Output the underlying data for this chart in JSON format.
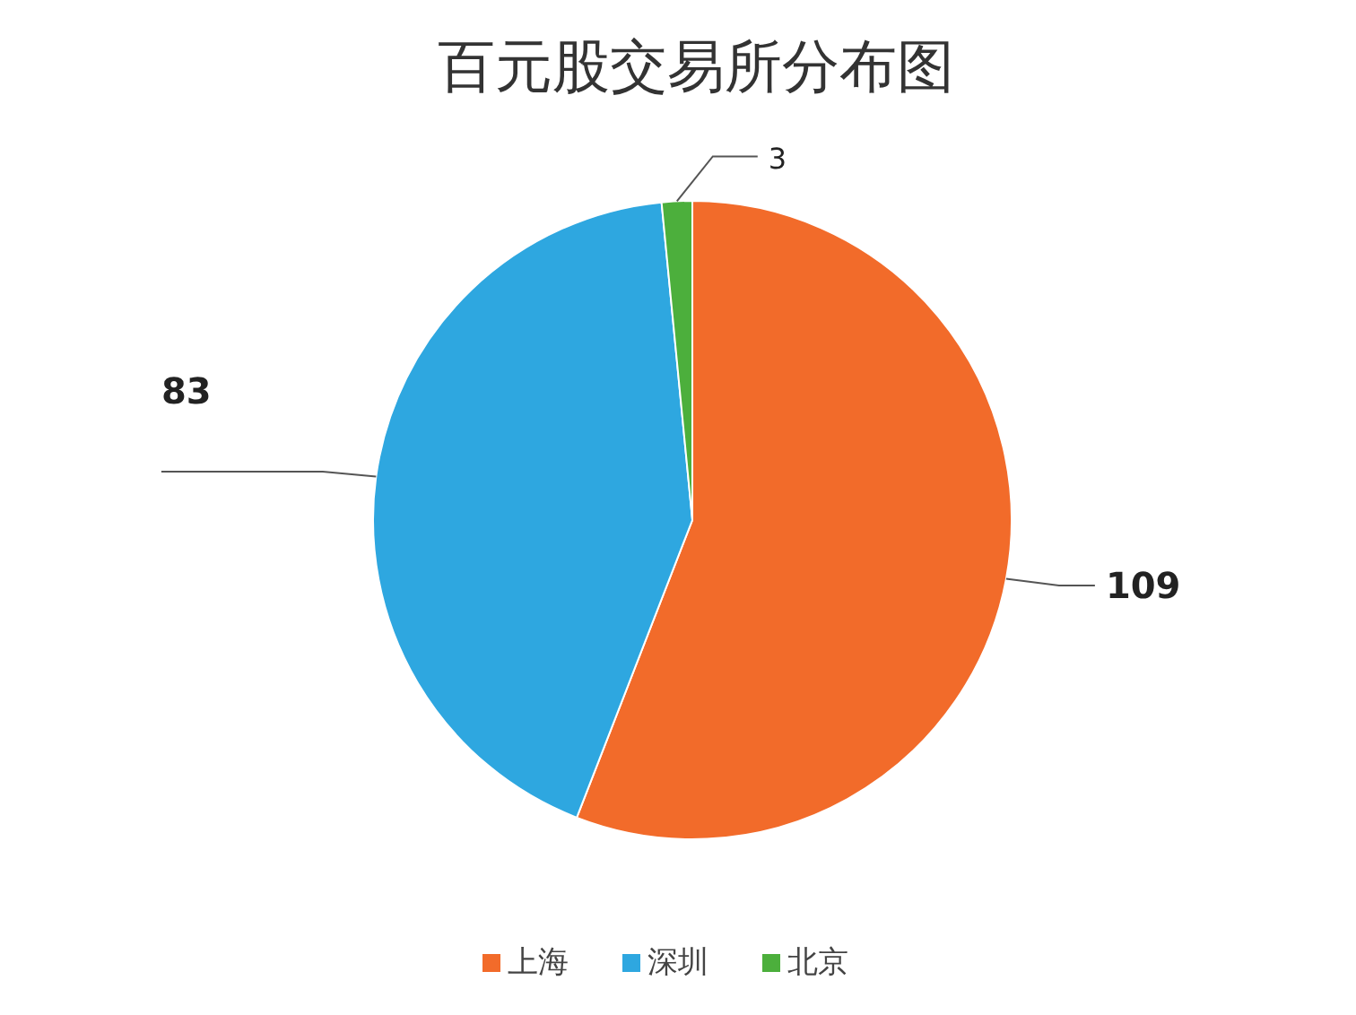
{
  "chart_data": {
    "type": "pie",
    "title": "百元股交易所分布图",
    "categories": [
      "上海",
      "深圳",
      "北京"
    ],
    "values": [
      109,
      83,
      3
    ],
    "colors": [
      "#f26b2a",
      "#2ea7e0",
      "#4caf3c"
    ],
    "data_labels": true,
    "legend": "bottom"
  }
}
